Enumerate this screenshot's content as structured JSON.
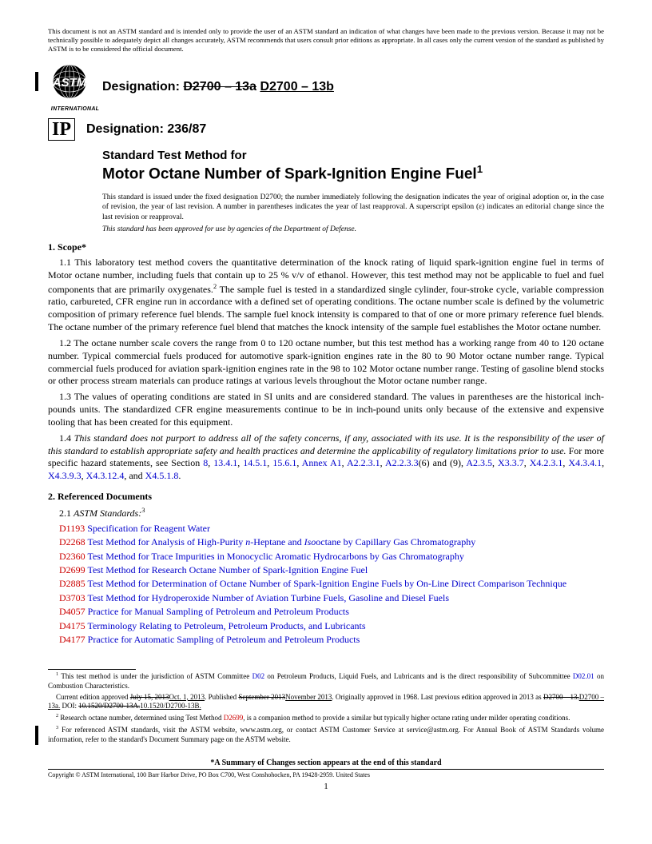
{
  "disclaimer": "This document is not an ASTM standard and is intended only to provide the user of an ASTM standard an indication of what changes have been made to the previous version. Because it may not be technically possible to adequately depict all changes accurately, ASTM recommends that users consult prior editions as appropriate. In all cases only the current version of the standard as published by ASTM is to be considered the official document.",
  "logo_intl": "INTERNATIONAL",
  "designation_label": "Designation:",
  "designation_old": "D2700 – 13a",
  "designation_new": "D2700 – 13b",
  "ip_label": "IP",
  "ip_designation": "Designation: 236/87",
  "title_line1": "Standard Test Method for",
  "title_line2": "Motor Octane Number of Spark-Ignition Engine Fuel",
  "title_sup": "1",
  "issuance": "This standard is issued under the fixed designation D2700; the number immediately following the designation indicates the year of original adoption or, in the case of revision, the year of last revision. A number in parentheses indicates the year of last reapproval. A superscript epsilon (ε) indicates an editorial change since the last revision or reapproval.",
  "dod": "This standard has been approved for use by agencies of the Department of Defense.",
  "s1_head": "1. Scope*",
  "s1_1_a": "1.1 This laboratory test method covers the quantitative determination of the knock rating of liquid spark-ignition engine fuel in terms of Motor octane number, including fuels that contain up to 25 % v/v of ethanol. However, this test method may not be applicable to fuel and fuel components that are primarily oxygenates.",
  "s1_1_b": " The sample fuel is tested in a standardized single cylinder, four-stroke cycle, variable compression ratio, carbureted, CFR engine run in accordance with a defined set of operating conditions. The octane number scale is defined by the volumetric composition of primary reference fuel blends. The sample fuel knock intensity is compared to that of one or more primary reference fuel blends. The octane number of the primary reference fuel blend that matches the knock intensity of the sample fuel establishes the Motor octane number.",
  "s1_2": "1.2 The octane number scale covers the range from 0 to 120 octane number, but this test method has a working range from 40 to 120 octane number. Typical commercial fuels produced for automotive spark-ignition engines rate in the 80 to 90 Motor octane number range. Typical commercial fuels produced for aviation spark-ignition engines rate in the 98 to 102 Motor octane number range. Testing of gasoline blend stocks or other process stream materials can produce ratings at various levels throughout the Motor octane number range.",
  "s1_3": "1.3 The values of operating conditions are stated in SI units and are considered standard. The values in parentheses are the historical inch-pounds units. The standardized CFR engine measurements continue to be in inch-pound units only because of the extensive and expensive tooling that has been created for this equipment.",
  "s1_4_a": "1.4 ",
  "s1_4_b": "This standard does not purport to address all of the safety concerns, if any, associated with its use. It is the responsibility of the user of this standard to establish appropriate safety and health practices and determine the applicability of regulatory limitations prior to use.",
  "s1_4_c": " For more specific hazard statements, see Section ",
  "s1_4_refs": [
    "8",
    "13.4.1",
    "14.5.1",
    "15.6.1",
    "Annex A1",
    "A2.2.3.1",
    "A2.2.3.3"
  ],
  "s1_4_mid": "(6) and (9), ",
  "s1_4_refs2": [
    "A2.3.5",
    "X3.3.7",
    "X4.2.3.1",
    "X4.3.4.1",
    "X4.3.9.3",
    "X4.3.12.4"
  ],
  "s1_4_end": ", and ",
  "s1_4_last": "X4.5.1.8",
  "s2_head": "2. Referenced Documents",
  "s2_1": "2.1 ",
  "s2_1_it": "ASTM Standards:",
  "refs": [
    {
      "code": "D1193",
      "title": "Specification for Reagent Water"
    },
    {
      "code": "D2268",
      "title": "Test Method for Analysis of High-Purity n-Heptane and Isooctane by Capillary Gas Chromatography"
    },
    {
      "code": "D2360",
      "title": "Test Method for Trace Impurities in Monocyclic Aromatic Hydrocarbons by Gas Chromatography"
    },
    {
      "code": "D2699",
      "title": "Test Method for Research Octane Number of Spark-Ignition Engine Fuel"
    },
    {
      "code": "D2885",
      "title": "Test Method for Determination of Octane Number of Spark-Ignition Engine Fuels by On-Line Direct Comparison Technique"
    },
    {
      "code": "D3703",
      "title": "Test Method for Hydroperoxide Number of Aviation Turbine Fuels, Gasoline and Diesel Fuels"
    },
    {
      "code": "D4057",
      "title": "Practice for Manual Sampling of Petroleum and Petroleum Products"
    },
    {
      "code": "D4175",
      "title": "Terminology Relating to Petroleum, Petroleum Products, and Lubricants"
    },
    {
      "code": "D4177",
      "title": "Practice for Automatic Sampling of Petroleum and Petroleum Products"
    }
  ],
  "fn1_a": " This test method is under the jurisdiction of ASTM Committee ",
  "fn1_link1": "D02",
  "fn1_b": " on Petroleum Products, Liquid Fuels, and Lubricants and is the direct responsibility of Subcommittee ",
  "fn1_link2": "D02.01",
  "fn1_c": " on Combustion Characteristics.",
  "fn1_d": "Current edition approved ",
  "fn1_old_date": "July 15, 2013",
  "fn1_new_date": "Oct. 1, 2013",
  "fn1_e": ". Published ",
  "fn1_old_pub": "September 2013",
  "fn1_new_pub": "November 2013",
  "fn1_f": ". Originally approved in 1968. Last previous edition approved in 2013 as ",
  "fn1_old_ed": "D2700 – 13.",
  "fn1_new_ed": "D2700 – 13a.",
  "fn1_g": " DOI: ",
  "fn1_old_doi": "10.1520/D2700-13A.",
  "fn1_new_doi": "10.1520/D2700-13B.",
  "fn2_a": " Research octane number, determined using Test Method ",
  "fn2_link": "D2699",
  "fn2_b": ", is a companion method to provide a similar but typically higher octane rating under milder operating conditions.",
  "fn3": " For referenced ASTM standards, visit the ASTM website, www.astm.org, or contact ASTM Customer Service at service@astm.org. For Annual Book of ASTM Standards volume information, refer to the standard's Document Summary page on the ASTM website.",
  "summary": "*A Summary of Changes section appears at the end of this standard",
  "copyright": "Copyright © ASTM International, 100 Barr Harbor Drive, PO Box C700, West Conshohocken, PA 19428-2959. United States",
  "pagenum": "1"
}
